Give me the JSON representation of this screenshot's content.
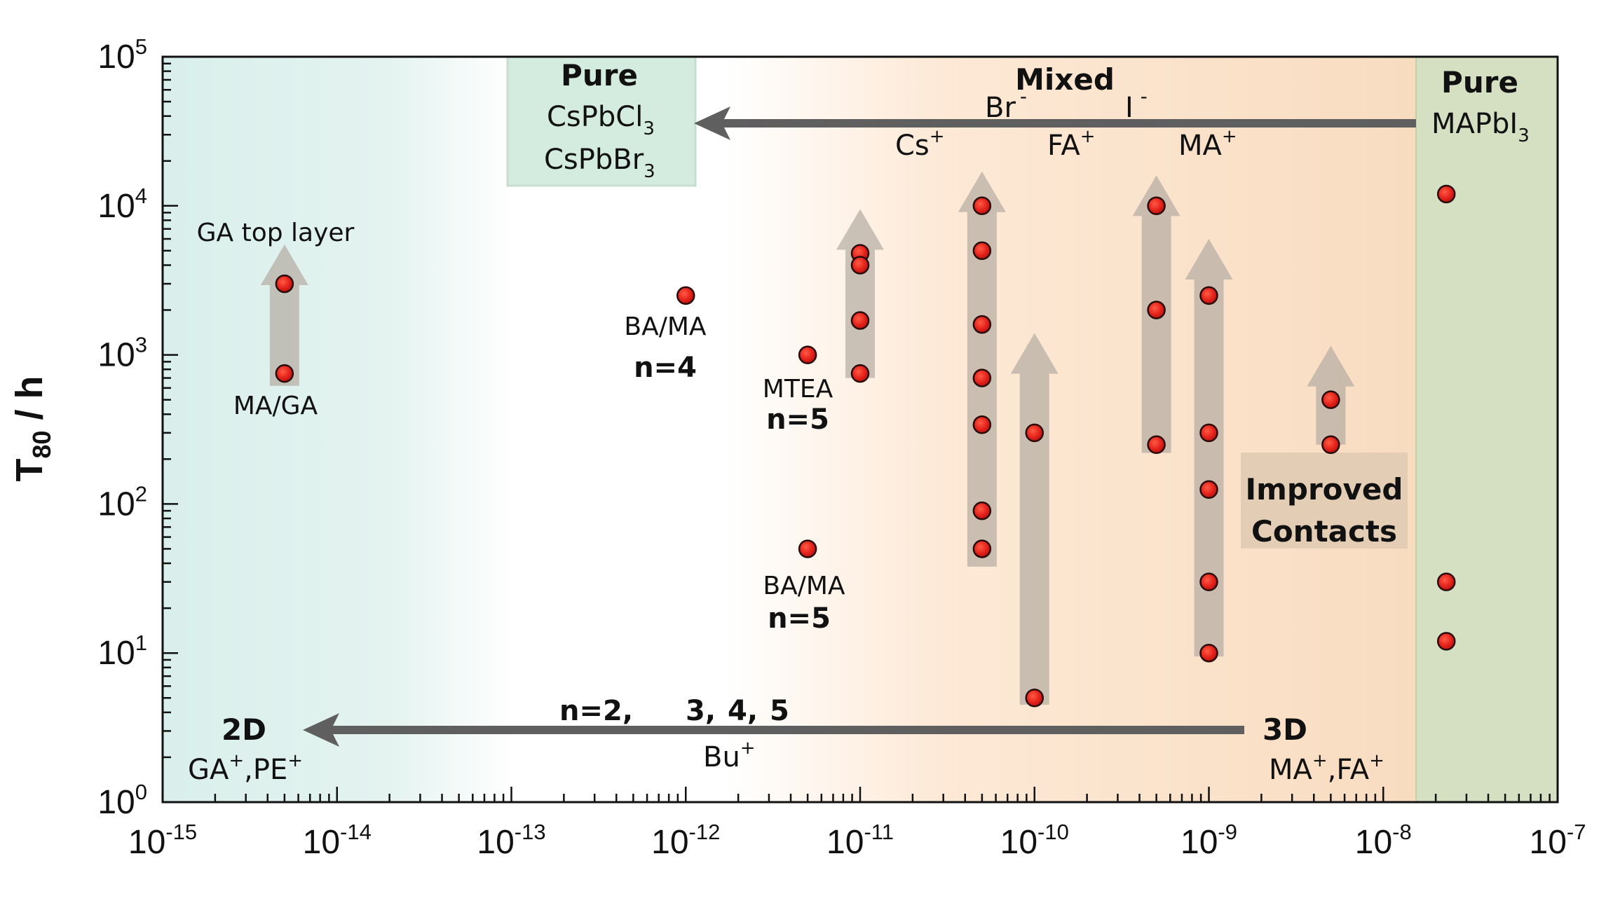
{
  "chart_data": {
    "type": "scatter",
    "title": "",
    "ylabel": "T",
    "ylabel_sub": "80",
    "ylabel_unit": " / h",
    "xscale": "log",
    "yscale": "log",
    "xlim": [
      1e-15,
      1e-07
    ],
    "ylim": [
      1,
      100000
    ],
    "x_tick_labels": [
      {
        "base": "10",
        "exp": "-15"
      },
      {
        "base": "10",
        "exp": "-14"
      },
      {
        "base": "10",
        "exp": "-13"
      },
      {
        "base": "10",
        "exp": "-12"
      },
      {
        "base": "10",
        "exp": "-11"
      },
      {
        "base": "10",
        "exp": "-10"
      },
      {
        "base": "10",
        "exp": "-9"
      },
      {
        "base": "10",
        "exp": "-8"
      },
      {
        "base": "10",
        "exp": "-7"
      }
    ],
    "y_tick_labels": [
      {
        "base": "10",
        "exp": "0"
      },
      {
        "base": "10",
        "exp": "1"
      },
      {
        "base": "10",
        "exp": "2"
      },
      {
        "base": "10",
        "exp": "3"
      },
      {
        "base": "10",
        "exp": "4"
      },
      {
        "base": "10",
        "exp": "5"
      }
    ],
    "series": [
      {
        "color": "#e4231c",
        "points": [
          {
            "x": 5e-15,
            "y": 3000
          },
          {
            "x": 5e-15,
            "y": 750
          },
          {
            "x": 1e-12,
            "y": 2500
          },
          {
            "x": 5e-12,
            "y": 1000
          },
          {
            "x": 5e-12,
            "y": 50
          },
          {
            "x": 1e-11,
            "y": 4800
          },
          {
            "x": 1e-11,
            "y": 4000
          },
          {
            "x": 1e-11,
            "y": 1700
          },
          {
            "x": 1e-11,
            "y": 750
          },
          {
            "x": 5e-11,
            "y": 10000
          },
          {
            "x": 5e-11,
            "y": 5000
          },
          {
            "x": 5e-11,
            "y": 1600
          },
          {
            "x": 5e-11,
            "y": 700
          },
          {
            "x": 5e-11,
            "y": 340
          },
          {
            "x": 5e-11,
            "y": 90
          },
          {
            "x": 5e-11,
            "y": 50
          },
          {
            "x": 1e-10,
            "y": 300
          },
          {
            "x": 1e-10,
            "y": 5
          },
          {
            "x": 5e-10,
            "y": 10000
          },
          {
            "x": 5e-10,
            "y": 2000
          },
          {
            "x": 5e-10,
            "y": 250
          },
          {
            "x": 1e-09,
            "y": 2500
          },
          {
            "x": 1e-09,
            "y": 300
          },
          {
            "x": 1e-09,
            "y": 125
          },
          {
            "x": 1e-09,
            "y": 30
          },
          {
            "x": 1e-09,
            "y": 10
          },
          {
            "x": 5e-09,
            "y": 500
          },
          {
            "x": 5e-09,
            "y": 250
          },
          {
            "x": 2.3e-08,
            "y": 12000
          },
          {
            "x": 2.3e-08,
            "y": 30
          },
          {
            "x": 2.3e-08,
            "y": 12
          }
        ]
      }
    ],
    "improvement_arrows": [
      {
        "x": 5e-15,
        "y_from": 620,
        "y_to": 5500
      },
      {
        "x": 1e-11,
        "y_from": 700,
        "y_to": 9500
      },
      {
        "x": 5e-11,
        "y_from": 38,
        "y_to": 17000
      },
      {
        "x": 1e-10,
        "y_from": 4.5,
        "y_to": 1400
      },
      {
        "x": 5e-10,
        "y_from": 220,
        "y_to": 16000
      },
      {
        "x": 1e-09,
        "y_from": 9.5,
        "y_to": 6000
      },
      {
        "x": 5e-09,
        "y_from": 250,
        "y_to": 1150
      }
    ],
    "regions": [
      {
        "name": "2D",
        "color": "#d9efeb"
      },
      {
        "name": "3D",
        "color": "#f8dcc0"
      },
      {
        "name": "Pure MAPbI3",
        "color": "#d5dfc2"
      }
    ],
    "annotations": {
      "ga_top_layer": "GA top layer",
      "ma_ga": "MA/GA",
      "ba_ma_1": "BA/MA",
      "n4": "n=4",
      "mtea": "MTEA",
      "n5_a": "n=5",
      "ba_ma_2": "BA/MA",
      "n5_b": "n=5",
      "pure_left_title": "Pure",
      "cspbcl3_base": "CsPbCl",
      "cspbcl3_sub": "3",
      "cspbbr3_base": "CsPbBr",
      "cspbbr3_sub": "3",
      "pure_right_title": "Pure",
      "mapbi3_base": "MAPbI",
      "mapbi3_sub": "3",
      "mixed": "Mixed",
      "br": "Br",
      "br_sup": "-",
      "i": "I",
      "i_sup": "-",
      "cs": "Cs",
      "cs_sup": "+",
      "fa": "FA",
      "fa_sup": "+",
      "ma": "MA",
      "ma_sup": "+",
      "improved": "Improved",
      "contacts": "Contacts",
      "n_series_1": "n=2,",
      "n_series_2": "3,",
      "n_series_3": "4,",
      "n_series_4": "5",
      "bu": "Bu",
      "bu_sup": "+",
      "label_2d": "2D",
      "ga_pe": "GA",
      "ga_pe_sup1": "+",
      "ga_pe_mid": ",PE",
      "ga_pe_sup2": "+",
      "label_3d": "3D",
      "ma_fa": "MA",
      "ma_fa_sup1": "+",
      "ma_fa_mid": ",FA",
      "ma_fa_sup2": "+"
    }
  }
}
